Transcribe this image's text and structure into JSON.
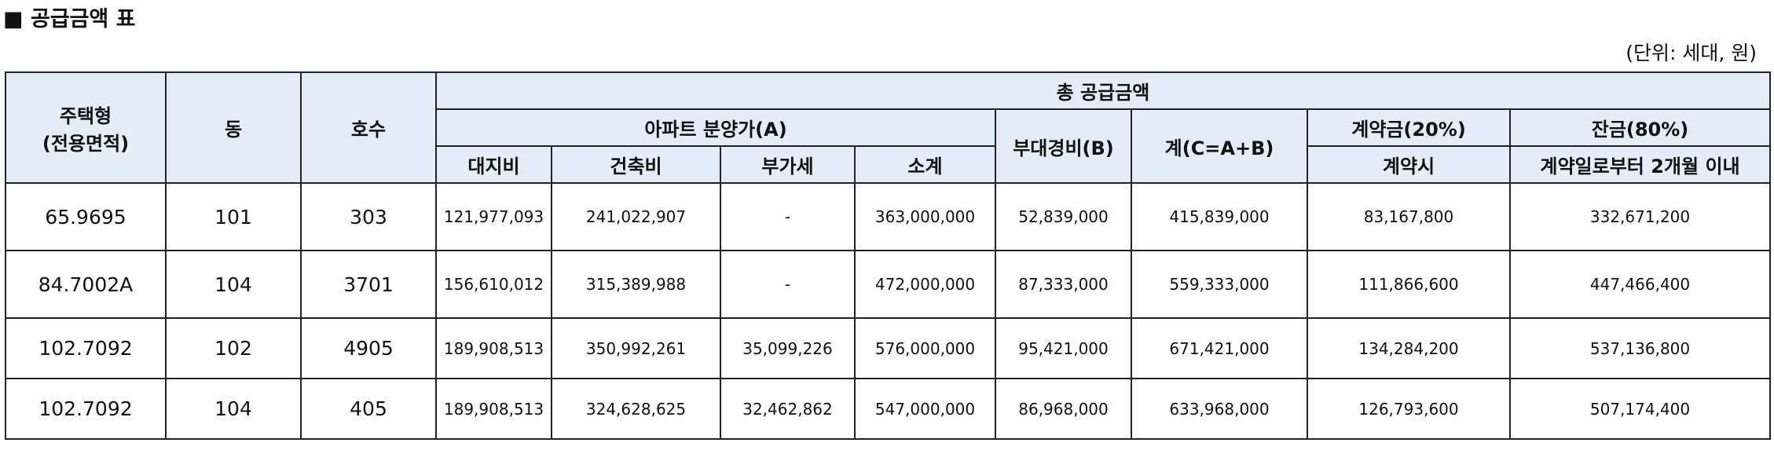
{
  "title": "■ 공급금액 표",
  "unit": "(단위: 세대, 원)",
  "headers": {
    "house_type_line1": "주택형",
    "house_type_line2": "(전용면적)",
    "dong": "동",
    "ho": "호수",
    "total_supply": "총 공급금액",
    "apt_price": "아파트 분양가(A)",
    "extra_cost": "부대경비(B)",
    "sum": "계(C=A+B)",
    "deposit": "계약금(20%)",
    "balance": "잔금(80%)",
    "land": "대지비",
    "building": "건축비",
    "vat": "부가세",
    "subtotal": "소계",
    "at_contract": "계약시",
    "within_2_months": "계약일로부터 2개월 이내"
  },
  "rows": [
    {
      "type": "65.9695",
      "dong": "101",
      "ho": "303",
      "land": "121,977,093",
      "building": "241,022,907",
      "vat": "-",
      "subtotal": "363,000,000",
      "extra": "52,839,000",
      "sum": "415,839,000",
      "deposit": "83,167,800",
      "balance": "332,671,200"
    },
    {
      "type": "84.7002A",
      "dong": "104",
      "ho": "3701",
      "land": "156,610,012",
      "building": "315,389,988",
      "vat": "-",
      "subtotal": "472,000,000",
      "extra": "87,333,000",
      "sum": "559,333,000",
      "deposit": "111,866,600",
      "balance": "447,466,400"
    },
    {
      "type": "102.7092",
      "dong": "102",
      "ho": "4905",
      "land": "189,908,513",
      "building": "350,992,261",
      "vat": "35,099,226",
      "subtotal": "576,000,000",
      "extra": "95,421,000",
      "sum": "671,421,000",
      "deposit": "134,284,200",
      "balance": "537,136,800"
    },
    {
      "type": "102.7092",
      "dong": "104",
      "ho": "405",
      "land": "189,908,513",
      "building": "324,628,625",
      "vat": "32,462,862",
      "subtotal": "547,000,000",
      "extra": "86,968,000",
      "sum": "633,968,000",
      "deposit": "126,793,600",
      "balance": "507,174,400"
    }
  ]
}
